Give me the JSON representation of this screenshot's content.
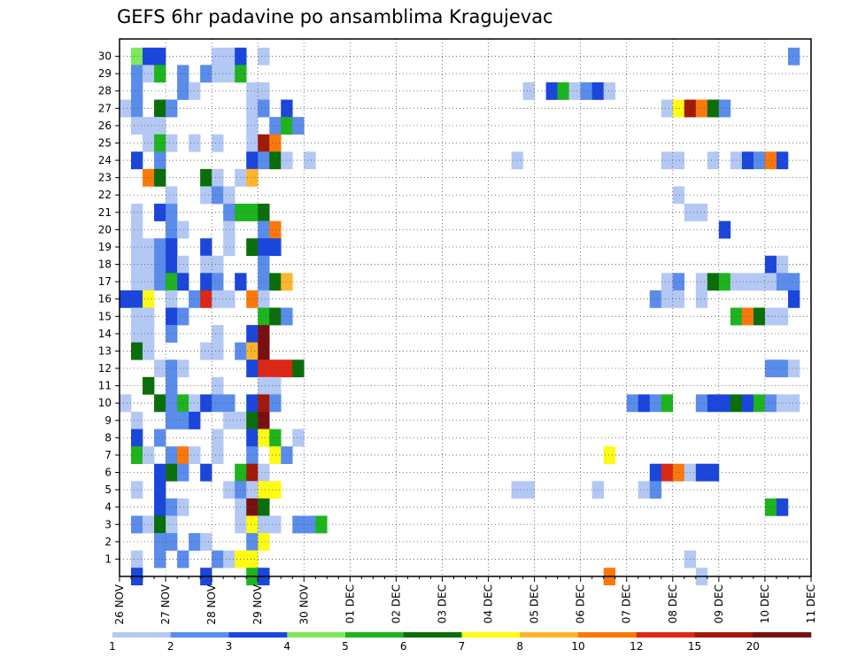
{
  "chart_data": {
    "type": "heatmap",
    "title": "GEFS 6hr padavine po ansamblima Kragujevac",
    "xlabel": "",
    "ylabel": "",
    "x_tick_labels": [
      "26 NOV",
      "27 NOV",
      "28 NOV",
      "29 NOV",
      "30 NOV",
      "01 DEC",
      "02 DEC",
      "03 DEC",
      "04 DEC",
      "05 DEC",
      "06 DEC",
      "07 DEC",
      "08 DEC",
      "09 DEC",
      "10 DEC",
      "11 DEC"
    ],
    "y_tick_labels": [
      "1",
      "2",
      "3",
      "4",
      "5",
      "6",
      "7",
      "8",
      "9",
      "10",
      "11",
      "12",
      "13",
      "14",
      "15",
      "16",
      "17",
      "18",
      "19",
      "20",
      "21",
      "22",
      "23",
      "24",
      "25",
      "26",
      "27",
      "28",
      "29",
      "30"
    ],
    "x_step_hours": 6,
    "n_time_steps": 60,
    "n_members": 30,
    "grid": true,
    "colorbar": {
      "position": "bottom",
      "labels": [
        "1",
        "2",
        "3",
        "4",
        "5",
        "6",
        "7",
        "8",
        "10",
        "12",
        "15",
        "20"
      ],
      "colors": [
        "#b4c8f4",
        "#5a8cec",
        "#1a46dc",
        "#7ce85a",
        "#1eb41e",
        "#0a6e0a",
        "#fffa14",
        "#ffb42c",
        "#fa780a",
        "#dc2814",
        "#a01a0a",
        "#781010"
      ]
    },
    "cells": [
      [
        30,
        1,
        4
      ],
      [
        30,
        2,
        3
      ],
      [
        30,
        3,
        3
      ],
      [
        30,
        8,
        1
      ],
      [
        30,
        9,
        1
      ],
      [
        30,
        10,
        3
      ],
      [
        30,
        12,
        1
      ],
      [
        30,
        58,
        2
      ],
      [
        29,
        1,
        2
      ],
      [
        29,
        2,
        1
      ],
      [
        29,
        3,
        5
      ],
      [
        29,
        5,
        2
      ],
      [
        29,
        7,
        2
      ],
      [
        29,
        8,
        1
      ],
      [
        29,
        9,
        1
      ],
      [
        29,
        10,
        5
      ],
      [
        28,
        1,
        2
      ],
      [
        28,
        5,
        2
      ],
      [
        28,
        6,
        1
      ],
      [
        28,
        11,
        1
      ],
      [
        28,
        12,
        1
      ],
      [
        28,
        35,
        1
      ],
      [
        28,
        37,
        3
      ],
      [
        28,
        38,
        5
      ],
      [
        28,
        39,
        1
      ],
      [
        28,
        40,
        2
      ],
      [
        28,
        41,
        3
      ],
      [
        28,
        42,
        1
      ],
      [
        27,
        0,
        1
      ],
      [
        27,
        1,
        2
      ],
      [
        27,
        3,
        6
      ],
      [
        27,
        4,
        2
      ],
      [
        27,
        11,
        1
      ],
      [
        27,
        12,
        2
      ],
      [
        27,
        14,
        3
      ],
      [
        27,
        47,
        1
      ],
      [
        27,
        48,
        7
      ],
      [
        27,
        49,
        11
      ],
      [
        27,
        50,
        9
      ],
      [
        27,
        51,
        6
      ],
      [
        27,
        52,
        2
      ],
      [
        26,
        1,
        1
      ],
      [
        26,
        2,
        1
      ],
      [
        26,
        3,
        1
      ],
      [
        26,
        11,
        1
      ],
      [
        26,
        13,
        2
      ],
      [
        26,
        14,
        5
      ],
      [
        26,
        15,
        2
      ],
      [
        25,
        2,
        1
      ],
      [
        25,
        3,
        5
      ],
      [
        25,
        4,
        1
      ],
      [
        25,
        6,
        1
      ],
      [
        25,
        8,
        1
      ],
      [
        25,
        11,
        1
      ],
      [
        25,
        12,
        11
      ],
      [
        25,
        13,
        9
      ],
      [
        24,
        1,
        3
      ],
      [
        24,
        3,
        2
      ],
      [
        24,
        11,
        3
      ],
      [
        24,
        12,
        2
      ],
      [
        24,
        13,
        6
      ],
      [
        24,
        14,
        1
      ],
      [
        24,
        16,
        1
      ],
      [
        24,
        34,
        1
      ],
      [
        24,
        47,
        1
      ],
      [
        24,
        48,
        1
      ],
      [
        24,
        51,
        1
      ],
      [
        24,
        53,
        1
      ],
      [
        24,
        54,
        3
      ],
      [
        24,
        55,
        2
      ],
      [
        24,
        56,
        9
      ],
      [
        24,
        57,
        3
      ],
      [
        23,
        2,
        9
      ],
      [
        23,
        3,
        6
      ],
      [
        23,
        7,
        6
      ],
      [
        23,
        8,
        1
      ],
      [
        23,
        10,
        1
      ],
      [
        23,
        11,
        8
      ],
      [
        22,
        4,
        1
      ],
      [
        22,
        7,
        1
      ],
      [
        22,
        8,
        2
      ],
      [
        22,
        9,
        1
      ],
      [
        22,
        48,
        1
      ],
      [
        21,
        1,
        1
      ],
      [
        21,
        3,
        3
      ],
      [
        21,
        4,
        2
      ],
      [
        21,
        9,
        2
      ],
      [
        21,
        10,
        5
      ],
      [
        21,
        11,
        5
      ],
      [
        21,
        12,
        6
      ],
      [
        21,
        49,
        1
      ],
      [
        21,
        50,
        1
      ],
      [
        20,
        1,
        1
      ],
      [
        20,
        4,
        2
      ],
      [
        20,
        5,
        1
      ],
      [
        20,
        9,
        1
      ],
      [
        20,
        12,
        2
      ],
      [
        20,
        13,
        9
      ],
      [
        20,
        52,
        3
      ],
      [
        19,
        1,
        1
      ],
      [
        19,
        2,
        1
      ],
      [
        19,
        3,
        2
      ],
      [
        19,
        4,
        3
      ],
      [
        19,
        7,
        3
      ],
      [
        19,
        9,
        1
      ],
      [
        19,
        11,
        6
      ],
      [
        19,
        12,
        3
      ],
      [
        19,
        13,
        3
      ],
      [
        18,
        1,
        1
      ],
      [
        18,
        2,
        1
      ],
      [
        18,
        3,
        2
      ],
      [
        18,
        4,
        3
      ],
      [
        18,
        5,
        1
      ],
      [
        18,
        7,
        1
      ],
      [
        18,
        8,
        1
      ],
      [
        18,
        12,
        2
      ],
      [
        18,
        56,
        3
      ],
      [
        18,
        57,
        1
      ],
      [
        17,
        1,
        1
      ],
      [
        17,
        2,
        1
      ],
      [
        17,
        3,
        2
      ],
      [
        17,
        4,
        5
      ],
      [
        17,
        5,
        3
      ],
      [
        17,
        7,
        3
      ],
      [
        17,
        8,
        2
      ],
      [
        17,
        10,
        3
      ],
      [
        17,
        12,
        2
      ],
      [
        17,
        13,
        6
      ],
      [
        17,
        14,
        8
      ],
      [
        17,
        47,
        1
      ],
      [
        17,
        48,
        2
      ],
      [
        17,
        50,
        1
      ],
      [
        17,
        51,
        6
      ],
      [
        17,
        52,
        5
      ],
      [
        17,
        53,
        1
      ],
      [
        17,
        54,
        1
      ],
      [
        17,
        55,
        1
      ],
      [
        17,
        56,
        1
      ],
      [
        17,
        57,
        2
      ],
      [
        17,
        58,
        2
      ],
      [
        16,
        0,
        3
      ],
      [
        16,
        1,
        3
      ],
      [
        16,
        2,
        7
      ],
      [
        16,
        4,
        1
      ],
      [
        16,
        6,
        2
      ],
      [
        16,
        7,
        10
      ],
      [
        16,
        8,
        1
      ],
      [
        16,
        9,
        1
      ],
      [
        16,
        11,
        9
      ],
      [
        16,
        12,
        1
      ],
      [
        16,
        46,
        2
      ],
      [
        16,
        47,
        1
      ],
      [
        16,
        48,
        1
      ],
      [
        16,
        50,
        1
      ],
      [
        16,
        58,
        3
      ],
      [
        15,
        1,
        1
      ],
      [
        15,
        2,
        1
      ],
      [
        15,
        4,
        3
      ],
      [
        15,
        5,
        2
      ],
      [
        15,
        12,
        5
      ],
      [
        15,
        13,
        6
      ],
      [
        15,
        14,
        2
      ],
      [
        15,
        53,
        5
      ],
      [
        15,
        54,
        9
      ],
      [
        15,
        55,
        6
      ],
      [
        15,
        56,
        1
      ],
      [
        15,
        57,
        1
      ],
      [
        14,
        1,
        1
      ],
      [
        14,
        2,
        1
      ],
      [
        14,
        4,
        2
      ],
      [
        14,
        8,
        1
      ],
      [
        14,
        11,
        3
      ],
      [
        14,
        12,
        12
      ],
      [
        13,
        1,
        6
      ],
      [
        13,
        2,
        1
      ],
      [
        13,
        7,
        1
      ],
      [
        13,
        8,
        1
      ],
      [
        13,
        10,
        2
      ],
      [
        13,
        11,
        8
      ],
      [
        13,
        12,
        12
      ],
      [
        12,
        3,
        1
      ],
      [
        12,
        4,
        2
      ],
      [
        12,
        5,
        1
      ],
      [
        12,
        11,
        3
      ],
      [
        12,
        12,
        10
      ],
      [
        12,
        13,
        10
      ],
      [
        12,
        14,
        10
      ],
      [
        12,
        15,
        6
      ],
      [
        12,
        56,
        2
      ],
      [
        12,
        57,
        2
      ],
      [
        12,
        58,
        1
      ],
      [
        11,
        2,
        6
      ],
      [
        11,
        4,
        2
      ],
      [
        11,
        8,
        1
      ],
      [
        11,
        12,
        1
      ],
      [
        11,
        13,
        1
      ],
      [
        10,
        0,
        1
      ],
      [
        10,
        3,
        6
      ],
      [
        10,
        4,
        2
      ],
      [
        10,
        5,
        5
      ],
      [
        10,
        6,
        1
      ],
      [
        10,
        7,
        3
      ],
      [
        10,
        8,
        2
      ],
      [
        10,
        9,
        2
      ],
      [
        10,
        11,
        3
      ],
      [
        10,
        12,
        11
      ],
      [
        10,
        13,
        2
      ],
      [
        10,
        44,
        2
      ],
      [
        10,
        45,
        3
      ],
      [
        10,
        46,
        2
      ],
      [
        10,
        47,
        5
      ],
      [
        10,
        50,
        2
      ],
      [
        10,
        51,
        3
      ],
      [
        10,
        52,
        3
      ],
      [
        10,
        53,
        6
      ],
      [
        10,
        54,
        3
      ],
      [
        10,
        55,
        5
      ],
      [
        10,
        56,
        2
      ],
      [
        10,
        57,
        1
      ],
      [
        10,
        58,
        1
      ],
      [
        9,
        1,
        1
      ],
      [
        9,
        4,
        2
      ],
      [
        9,
        5,
        2
      ],
      [
        9,
        6,
        3
      ],
      [
        9,
        9,
        1
      ],
      [
        9,
        10,
        1
      ],
      [
        9,
        11,
        6
      ],
      [
        9,
        12,
        12
      ],
      [
        8,
        1,
        3
      ],
      [
        8,
        3,
        2
      ],
      [
        8,
        8,
        1
      ],
      [
        8,
        11,
        3
      ],
      [
        8,
        12,
        7
      ],
      [
        8,
        13,
        5
      ],
      [
        8,
        15,
        1
      ],
      [
        7,
        1,
        5
      ],
      [
        7,
        2,
        1
      ],
      [
        7,
        4,
        2
      ],
      [
        7,
        5,
        9
      ],
      [
        7,
        6,
        1
      ],
      [
        7,
        8,
        1
      ],
      [
        7,
        11,
        2
      ],
      [
        7,
        13,
        7
      ],
      [
        7,
        14,
        2
      ],
      [
        7,
        42,
        7
      ],
      [
        6,
        3,
        3
      ],
      [
        6,
        4,
        6
      ],
      [
        6,
        5,
        2
      ],
      [
        6,
        7,
        3
      ],
      [
        6,
        10,
        5
      ],
      [
        6,
        11,
        11
      ],
      [
        6,
        12,
        1
      ],
      [
        6,
        46,
        3
      ],
      [
        6,
        47,
        10
      ],
      [
        6,
        48,
        9
      ],
      [
        6,
        49,
        1
      ],
      [
        6,
        50,
        3
      ],
      [
        6,
        51,
        3
      ],
      [
        5,
        1,
        1
      ],
      [
        5,
        3,
        3
      ],
      [
        5,
        9,
        1
      ],
      [
        5,
        10,
        2
      ],
      [
        5,
        11,
        1
      ],
      [
        5,
        12,
        7
      ],
      [
        5,
        13,
        7
      ],
      [
        5,
        34,
        1
      ],
      [
        5,
        35,
        1
      ],
      [
        5,
        41,
        1
      ],
      [
        5,
        45,
        1
      ],
      [
        5,
        46,
        2
      ],
      [
        4,
        3,
        3
      ],
      [
        4,
        4,
        2
      ],
      [
        4,
        5,
        1
      ],
      [
        4,
        10,
        1
      ],
      [
        4,
        11,
        12
      ],
      [
        4,
        12,
        6
      ],
      [
        4,
        56,
        5
      ],
      [
        4,
        57,
        3
      ],
      [
        3,
        1,
        2
      ],
      [
        3,
        2,
        1
      ],
      [
        3,
        3,
        6
      ],
      [
        3,
        4,
        1
      ],
      [
        3,
        10,
        1
      ],
      [
        3,
        11,
        7
      ],
      [
        3,
        12,
        1
      ],
      [
        3,
        13,
        1
      ],
      [
        3,
        15,
        2
      ],
      [
        3,
        16,
        2
      ],
      [
        3,
        17,
        5
      ],
      [
        2,
        3,
        2
      ],
      [
        2,
        4,
        2
      ],
      [
        2,
        6,
        2
      ],
      [
        2,
        7,
        1
      ],
      [
        2,
        11,
        2
      ],
      [
        2,
        12,
        7
      ],
      [
        1,
        1,
        1
      ],
      [
        1,
        3,
        2
      ],
      [
        1,
        5,
        2
      ],
      [
        1,
        8,
        2
      ],
      [
        1,
        9,
        1
      ],
      [
        1,
        10,
        7
      ],
      [
        1,
        11,
        7
      ],
      [
        1,
        49,
        1
      ],
      [
        0,
        1,
        3
      ],
      [
        0,
        7,
        3
      ],
      [
        0,
        11,
        5
      ],
      [
        0,
        12,
        3
      ],
      [
        0,
        42,
        9
      ],
      [
        0,
        50,
        1
      ]
    ]
  }
}
